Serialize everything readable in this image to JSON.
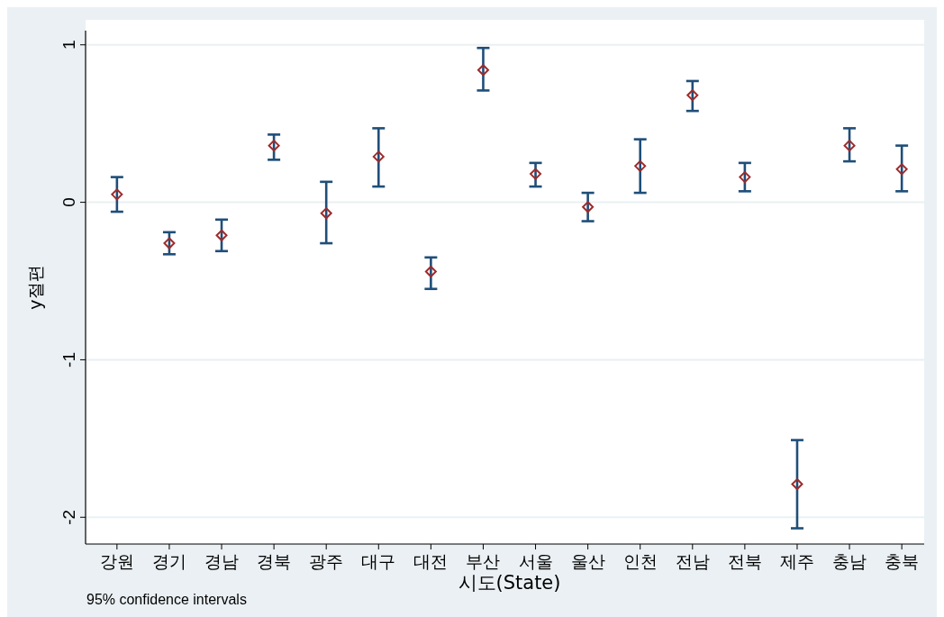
{
  "chart_data": {
    "type": "scatter",
    "xlabel": "시도(State)",
    "ylabel": "y절편",
    "categories": [
      "강원",
      "경기",
      "경남",
      "경북",
      "광주",
      "대구",
      "대전",
      "부산",
      "서울",
      "울산",
      "인천",
      "전남",
      "전북",
      "제주",
      "충남",
      "충북"
    ],
    "series": [
      {
        "color": "#9e2a2b",
        "values": [
          0.05,
          -0.26,
          -0.21,
          0.36,
          -0.07,
          0.29,
          -0.44,
          0.84,
          0.18,
          -0.03,
          0.23,
          0.68,
          0.16,
          -1.79,
          0.36,
          0.21
        ],
        "errors": [
          [
            -0.06,
            0.16
          ],
          [
            -0.33,
            -0.19
          ],
          [
            -0.31,
            -0.11
          ],
          [
            0.27,
            0.43
          ],
          [
            -0.26,
            0.13
          ],
          [
            0.1,
            0.47
          ],
          [
            -0.55,
            -0.35
          ],
          [
            0.71,
            0.98
          ],
          [
            0.1,
            0.25
          ],
          [
            -0.12,
            0.06
          ],
          [
            0.06,
            0.4
          ],
          [
            0.58,
            0.77
          ],
          [
            0.07,
            0.25
          ],
          [
            -2.07,
            -1.51
          ],
          [
            0.26,
            0.47
          ],
          [
            0.07,
            0.36
          ]
        ]
      }
    ],
    "ylim": [
      -2.17,
      1.09
    ],
    "yticks": [
      -2,
      -1,
      0,
      1
    ],
    "grid": "y",
    "marker": "diamond",
    "annotations": [
      "95% confidence intervals"
    ]
  }
}
